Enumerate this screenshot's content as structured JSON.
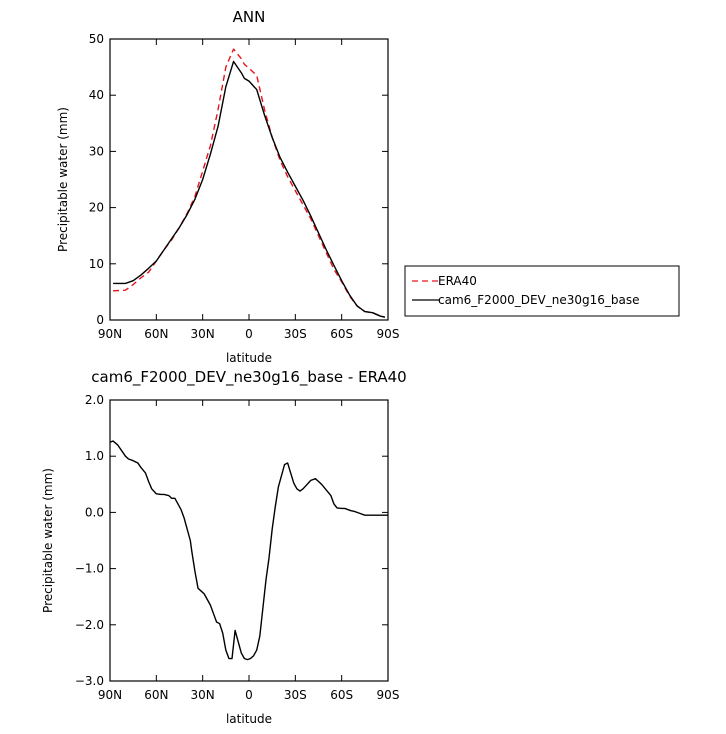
{
  "chart_data": [
    {
      "type": "line",
      "title": "ANN",
      "xlabel": "latitude",
      "ylabel": "Precipitable water (mm)",
      "xlim": [
        90,
        -90
      ],
      "ylim": [
        0,
        50
      ],
      "xticks": [
        {
          "value": 90,
          "label": "90N"
        },
        {
          "value": 60,
          "label": "60N"
        },
        {
          "value": 30,
          "label": "30N"
        },
        {
          "value": 0,
          "label": "0"
        },
        {
          "value": -30,
          "label": "30S"
        },
        {
          "value": -60,
          "label": "60S"
        },
        {
          "value": -90,
          "label": "90S"
        }
      ],
      "yticks": [
        {
          "value": 0,
          "label": "0"
        },
        {
          "value": 10,
          "label": "10"
        },
        {
          "value": 20,
          "label": "20"
        },
        {
          "value": 30,
          "label": "30"
        },
        {
          "value": 40,
          "label": "40"
        },
        {
          "value": 50,
          "label": "50"
        }
      ],
      "legend_position": "right",
      "series": [
        {
          "name": "ERA40",
          "color": "#e8141c",
          "dash": "dashed",
          "x": [
            88,
            80,
            75,
            70,
            65,
            60,
            55,
            50,
            45,
            40,
            35,
            30,
            25,
            20,
            15,
            10,
            5,
            3,
            0,
            -5,
            -10,
            -15,
            -20,
            -25,
            -30,
            -35,
            -40,
            -45,
            -50,
            -55,
            -60,
            -65,
            -70,
            -75,
            -80,
            -85,
            -88
          ],
          "values": [
            5.2,
            5.3,
            6.3,
            7.5,
            8.5,
            10.5,
            12.5,
            14.3,
            16.5,
            19.0,
            22.0,
            26.5,
            31.0,
            37.5,
            45.0,
            48.2,
            46.5,
            45.5,
            44.8,
            43.5,
            37.5,
            32.5,
            28.5,
            25.5,
            23.0,
            20.5,
            18.0,
            15.0,
            12.0,
            9.0,
            6.8,
            4.3,
            2.5,
            1.5,
            1.3,
            0.7,
            0.5
          ]
        },
        {
          "name": "cam6_F2000_DEV_ne30g16_base",
          "color": "#000000",
          "dash": "solid",
          "x": [
            88,
            80,
            75,
            70,
            65,
            60,
            55,
            50,
            45,
            40,
            35,
            30,
            25,
            20,
            15,
            10,
            5,
            3,
            0,
            -5,
            -10,
            -15,
            -20,
            -25,
            -30,
            -35,
            -40,
            -45,
            -50,
            -55,
            -60,
            -65,
            -70,
            -75,
            -80,
            -85,
            -88
          ],
          "values": [
            6.5,
            6.5,
            7.0,
            8.0,
            9.2,
            10.5,
            12.5,
            14.5,
            16.5,
            18.8,
            21.5,
            25.0,
            29.5,
            34.5,
            41.5,
            46.0,
            44.0,
            43.0,
            42.5,
            41.0,
            36.5,
            32.5,
            29.0,
            26.3,
            23.8,
            21.3,
            18.5,
            15.5,
            12.5,
            9.7,
            7.0,
            4.5,
            2.5,
            1.5,
            1.3,
            0.7,
            0.5
          ]
        }
      ]
    },
    {
      "type": "line",
      "title": "cam6_F2000_DEV_ne30g16_base - ERA40",
      "xlabel": "latitude",
      "ylabel": "Precipitable water (mm)",
      "xlim": [
        90,
        -90
      ],
      "ylim": [
        -3.0,
        2.0
      ],
      "xticks": [
        {
          "value": 90,
          "label": "90N"
        },
        {
          "value": 60,
          "label": "60N"
        },
        {
          "value": 30,
          "label": "30N"
        },
        {
          "value": 0,
          "label": "0"
        },
        {
          "value": -30,
          "label": "30S"
        },
        {
          "value": -60,
          "label": "60S"
        },
        {
          "value": -90,
          "label": "90S"
        }
      ],
      "yticks": [
        {
          "value": -3.0,
          "label": "−3.0"
        },
        {
          "value": -2.0,
          "label": "−2.0"
        },
        {
          "value": -1.0,
          "label": "−1.0"
        },
        {
          "value": 0.0,
          "label": "0.0"
        },
        {
          "value": 1.0,
          "label": "1.0"
        },
        {
          "value": 2.0,
          "label": "2.0"
        }
      ],
      "series": [
        {
          "name": "",
          "color": "#000000",
          "dash": "solid",
          "x": [
            90,
            88,
            85,
            82,
            80,
            78,
            75,
            72,
            70,
            67,
            65,
            63,
            60,
            57,
            55,
            52,
            50,
            48,
            46,
            44,
            42,
            40,
            38,
            37,
            35,
            33,
            31,
            29,
            27,
            25,
            23,
            21,
            19,
            17,
            15,
            13,
            11,
            9,
            7,
            5,
            3,
            1,
            -1,
            -3,
            -5,
            -7,
            -9,
            -11,
            -13,
            -15,
            -17,
            -19,
            -21,
            -23,
            -25,
            -27,
            -29,
            -31,
            -33,
            -35,
            -37,
            -40,
            -43,
            -45,
            -47,
            -50,
            -53,
            -55,
            -57,
            -60,
            -62,
            -64,
            -66,
            -68,
            -70,
            -72,
            -75,
            -78,
            -80,
            -83,
            -85,
            -88,
            -90
          ],
          "values": [
            1.25,
            1.27,
            1.2,
            1.08,
            1.0,
            0.95,
            0.92,
            0.88,
            0.8,
            0.7,
            0.55,
            0.42,
            0.33,
            0.32,
            0.32,
            0.3,
            0.25,
            0.25,
            0.15,
            0.05,
            -0.1,
            -0.3,
            -0.5,
            -0.7,
            -1.05,
            -1.35,
            -1.4,
            -1.45,
            -1.55,
            -1.65,
            -1.8,
            -1.95,
            -1.98,
            -2.15,
            -2.45,
            -2.6,
            -2.6,
            -2.1,
            -2.3,
            -2.5,
            -2.6,
            -2.62,
            -2.6,
            -2.55,
            -2.45,
            -2.2,
            -1.7,
            -1.2,
            -0.8,
            -0.3,
            0.1,
            0.45,
            0.65,
            0.85,
            0.88,
            0.7,
            0.52,
            0.42,
            0.38,
            0.42,
            0.48,
            0.57,
            0.6,
            0.55,
            0.5,
            0.4,
            0.3,
            0.15,
            0.08,
            0.07,
            0.07,
            0.05,
            0.03,
            0.02,
            0.0,
            -0.02,
            -0.05,
            -0.05,
            -0.05,
            -0.05,
            -0.05,
            -0.05,
            -0.05
          ]
        }
      ]
    }
  ]
}
